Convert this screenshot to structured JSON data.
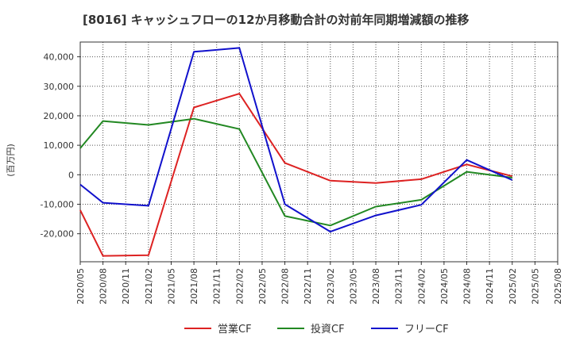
{
  "chart_data": {
    "type": "line",
    "title": "[8016]  キャッシュフローの12か月移動合計の対前年同期増減額の推移",
    "ylabel": "(百万円)",
    "xlabel": "",
    "ylim": [
      -29500,
      45000
    ],
    "yticks": [
      40000,
      30000,
      20000,
      10000,
      0,
      -10000,
      -20000
    ],
    "ytick_labels": [
      "40,000",
      "30,000",
      "20,000",
      "10,000",
      "0",
      "-10,000",
      "-20,000"
    ],
    "xtick_labels": [
      "2020/05",
      "2020/08",
      "2020/11",
      "2021/02",
      "2021/05",
      "2021/08",
      "2021/11",
      "2022/02",
      "2022/05",
      "2022/08",
      "2022/11",
      "2023/02",
      "2023/05",
      "2023/08",
      "2023/11",
      "2024/02",
      "2024/05",
      "2024/08",
      "2024/11",
      "2025/02",
      "2025/05",
      "2025/08"
    ],
    "grid": true,
    "legend_position": "bottom",
    "series": [
      {
        "name": "営業CF",
        "color": "#dd2222",
        "points": [
          [
            0,
            -12000
          ],
          [
            1,
            -27500
          ],
          [
            3,
            -27300
          ],
          [
            5,
            22800
          ],
          [
            7,
            27500
          ],
          [
            9,
            4000
          ],
          [
            11,
            -2000
          ],
          [
            13,
            -2800
          ],
          [
            15,
            -1500
          ],
          [
            17,
            3500
          ],
          [
            19,
            -500
          ]
        ]
      },
      {
        "name": "投資CF",
        "color": "#228822",
        "points": [
          [
            0,
            9000
          ],
          [
            1,
            18200
          ],
          [
            3,
            16900
          ],
          [
            5,
            19000
          ],
          [
            7,
            15500
          ],
          [
            9,
            -14000
          ],
          [
            11,
            -17200
          ],
          [
            13,
            -10800
          ],
          [
            15,
            -8500
          ],
          [
            17,
            1000
          ],
          [
            19,
            -1000
          ]
        ]
      },
      {
        "name": "フリーCF",
        "color": "#1111cc",
        "points": [
          [
            0,
            -3300
          ],
          [
            1,
            -9500
          ],
          [
            3,
            -10500
          ],
          [
            5,
            41700
          ],
          [
            7,
            43000
          ],
          [
            9,
            -10000
          ],
          [
            11,
            -19300
          ],
          [
            13,
            -13800
          ],
          [
            15,
            -10200
          ],
          [
            17,
            5000
          ],
          [
            19,
            -1800
          ]
        ]
      }
    ]
  }
}
